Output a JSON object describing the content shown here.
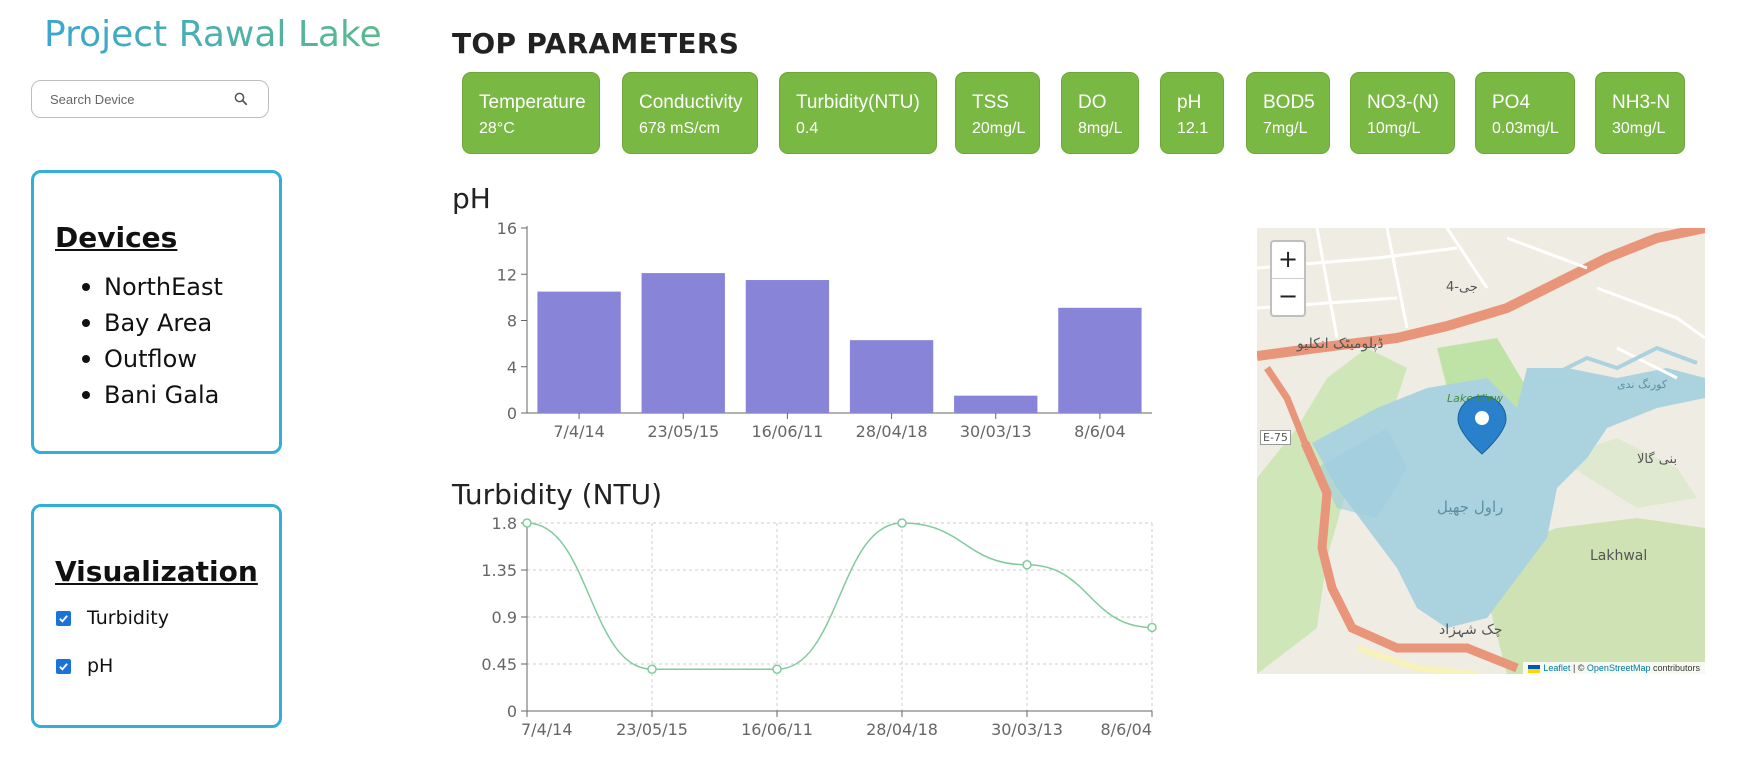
{
  "app": {
    "title": "Project Rawal Lake"
  },
  "search": {
    "placeholder": "Search Device"
  },
  "devices": {
    "heading": "Devices",
    "items": [
      "NorthEast",
      "Bay Area",
      "Outflow",
      "Bani Gala"
    ]
  },
  "visualization": {
    "heading": "Visualization",
    "options": [
      {
        "label": "Turbidity",
        "checked": true
      },
      {
        "label": "pH",
        "checked": true
      }
    ]
  },
  "top_parameters": {
    "heading": "TOP PARAMETERS",
    "items": [
      {
        "name": "Temperature",
        "value": "28°C"
      },
      {
        "name": "Conductivity",
        "value": "678 mS/cm"
      },
      {
        "name": "Turbidity(NTU)",
        "value": "0.4"
      },
      {
        "name": "TSS",
        "value": "20mg/L"
      },
      {
        "name": "DO",
        "value": "8mg/L"
      },
      {
        "name": "pH",
        "value": "12.1"
      },
      {
        "name": "BOD5",
        "value": "7mg/L"
      },
      {
        "name": "NO3-(N)",
        "value": "10mg/L"
      },
      {
        "name": "PO4",
        "value": "0.03mg/L"
      },
      {
        "name": "NH3-N",
        "value": "30mg/L"
      }
    ],
    "color": "#7ab844"
  },
  "chart_data": [
    {
      "type": "bar",
      "title": "pH",
      "categories": [
        "7/4/14",
        "23/05/15",
        "16/06/11",
        "28/04/18",
        "30/03/13",
        "8/6/04"
      ],
      "values": [
        10.5,
        12.1,
        11.5,
        6.3,
        1.5,
        9.1
      ],
      "yticks": [
        0,
        4,
        8,
        12,
        16
      ],
      "ylim": [
        0,
        16
      ],
      "grid": false,
      "color": "#8884d8"
    },
    {
      "type": "line",
      "title": "Turbidity (NTU)",
      "categories": [
        "7/4/14",
        "23/05/15",
        "16/06/11",
        "28/04/18",
        "30/03/13",
        "8/6/04"
      ],
      "values": [
        1.8,
        0.4,
        0.4,
        1.8,
        1.4,
        0.8
      ],
      "yticks": [
        "0",
        "0.45",
        "0.9",
        "1.35",
        "1.8"
      ],
      "ylim": [
        0,
        1.8
      ],
      "grid": true,
      "color": "#82ca9d"
    }
  ],
  "map": {
    "zoom_in": "+",
    "zoom_out": "−",
    "attribution": {
      "leaflet": "Leaflet",
      "sep": " | © ",
      "osm": "OpenStreetMap",
      "suffix": " contributors"
    },
    "labels": {
      "g4": "جی-4",
      "diplomatic": "ڈپلومیٹک انکلیو",
      "e75": "E-75",
      "lake_view": "Lake View",
      "rawal": "راول جھیل",
      "bani_gala": "بنی گالا",
      "lakhwal": "Lakhwal",
      "chak": "چک شہزاد",
      "korang": "کورنگ ندی"
    },
    "colors": {
      "water": "#aad3df",
      "road": "#e8957a",
      "park": "#c8e6b0",
      "marker": "#2a81cb"
    }
  }
}
